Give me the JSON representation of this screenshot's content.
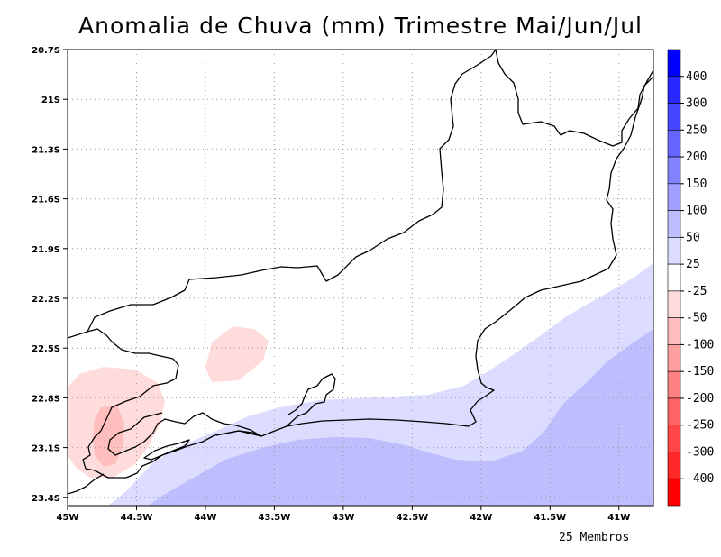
{
  "title": "Anomalia de Chuva (mm) Trimestre Mai/Jun/Jul",
  "footer": "25 Membros",
  "map": {
    "lon_range": [
      -45.0,
      -40.75
    ],
    "lat_range": [
      -23.45,
      -20.7
    ],
    "x_ticks": [
      {
        "lon": -45.0,
        "label": "45W"
      },
      {
        "lon": -44.5,
        "label": "44.5W"
      },
      {
        "lon": -44.0,
        "label": "44W"
      },
      {
        "lon": -43.5,
        "label": "43.5W"
      },
      {
        "lon": -43.0,
        "label": "43W"
      },
      {
        "lon": -42.5,
        "label": "42.5W"
      },
      {
        "lon": -42.0,
        "label": "42W"
      },
      {
        "lon": -41.5,
        "label": "41.5W"
      },
      {
        "lon": -41.0,
        "label": "41W"
      }
    ],
    "y_ticks": [
      {
        "lat": -20.7,
        "label": "20.7S"
      },
      {
        "lat": -21.0,
        "label": "21S"
      },
      {
        "lat": -21.3,
        "label": "21.3S"
      },
      {
        "lat": -21.6,
        "label": "21.6S"
      },
      {
        "lat": -21.9,
        "label": "21.9S"
      },
      {
        "lat": -22.2,
        "label": "22.2S"
      },
      {
        "lat": -22.5,
        "label": "22.5S"
      },
      {
        "lat": -22.8,
        "label": "22.8S"
      },
      {
        "lat": -23.1,
        "label": "23.1S"
      },
      {
        "lat": -23.4,
        "label": "23.4S"
      }
    ],
    "grid": "dotted"
  },
  "colorbar": {
    "labels": [
      "400",
      "300",
      "250",
      "200",
      "150",
      "100",
      "50",
      "25",
      "-25",
      "-50",
      "-100",
      "-150",
      "-200",
      "-250",
      "-300",
      "-400"
    ],
    "colors": [
      "#0000ff",
      "#2828ff",
      "#4646ff",
      "#6464ff",
      "#8282ff",
      "#a0a0ff",
      "#bebeff",
      "#dcdcff",
      "#ffffff",
      "#ffdcdc",
      "#ffbebe",
      "#ffa0a0",
      "#ff8282",
      "#ff6464",
      "#ff4646",
      "#ff2828",
      "#ff0000"
    ]
  },
  "anomaly_colors": {
    "light_red": "#ffdcdc",
    "mid_red": "#ffbebe",
    "light_blue": "#dcdcff",
    "mid_blue": "#bebeff"
  }
}
